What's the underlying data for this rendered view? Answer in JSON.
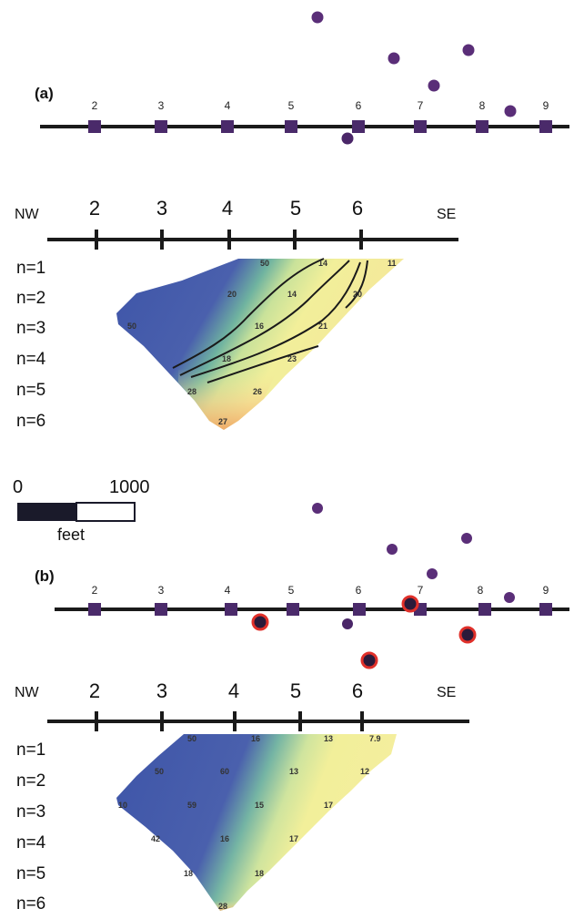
{
  "colors": {
    "line": "#1a1a1a",
    "station": "#4a2a6a",
    "well": "#5a2e78",
    "well_ring": "#e0302a",
    "res_blue": "#3e55a8",
    "res_teal": "#6fb3a0",
    "res_green": "#a9d49a",
    "res_yellow": "#f2ef9a",
    "res_orange": "#f0a866"
  },
  "panels": [
    {
      "label": "(a)",
      "station_numbers": [
        "2",
        "3",
        "4",
        "5",
        "6",
        "7",
        "8",
        "9"
      ],
      "wells_above": 6,
      "wells_below": 1,
      "profile": {
        "nw": "NW",
        "se": "SE",
        "electrodes": [
          "2",
          "3",
          "4",
          "5",
          "6"
        ],
        "n_levels": [
          "n=1",
          "n=2",
          "n=3",
          "n=4",
          "n=5",
          "n=6"
        ],
        "values": [
          "50",
          "14",
          "11",
          "20",
          "14",
          "20",
          "50",
          "16",
          "21",
          "18",
          "23",
          "28",
          "26",
          "27"
        ]
      }
    },
    {
      "label": "(b)",
      "station_numbers": [
        "2",
        "3",
        "4",
        "5",
        "6",
        "7",
        "8",
        "9"
      ],
      "wells_above": 6,
      "wells_below": 1,
      "ringed_wells": 4,
      "profile": {
        "nw": "NW",
        "se": "SE",
        "electrodes": [
          "2",
          "3",
          "4",
          "5",
          "6"
        ],
        "n_levels": [
          "n=1",
          "n=2",
          "n=3",
          "n=4",
          "n=5",
          "n=6"
        ],
        "values": [
          "50",
          "16",
          "13",
          "7.9",
          "50",
          "60",
          "13",
          "12",
          "10",
          "59",
          "15",
          "17",
          "42",
          "16",
          "17",
          "18",
          "18",
          "28"
        ]
      }
    }
  ],
  "scale": {
    "zero": "0",
    "max": "1000",
    "unit": "feet"
  }
}
